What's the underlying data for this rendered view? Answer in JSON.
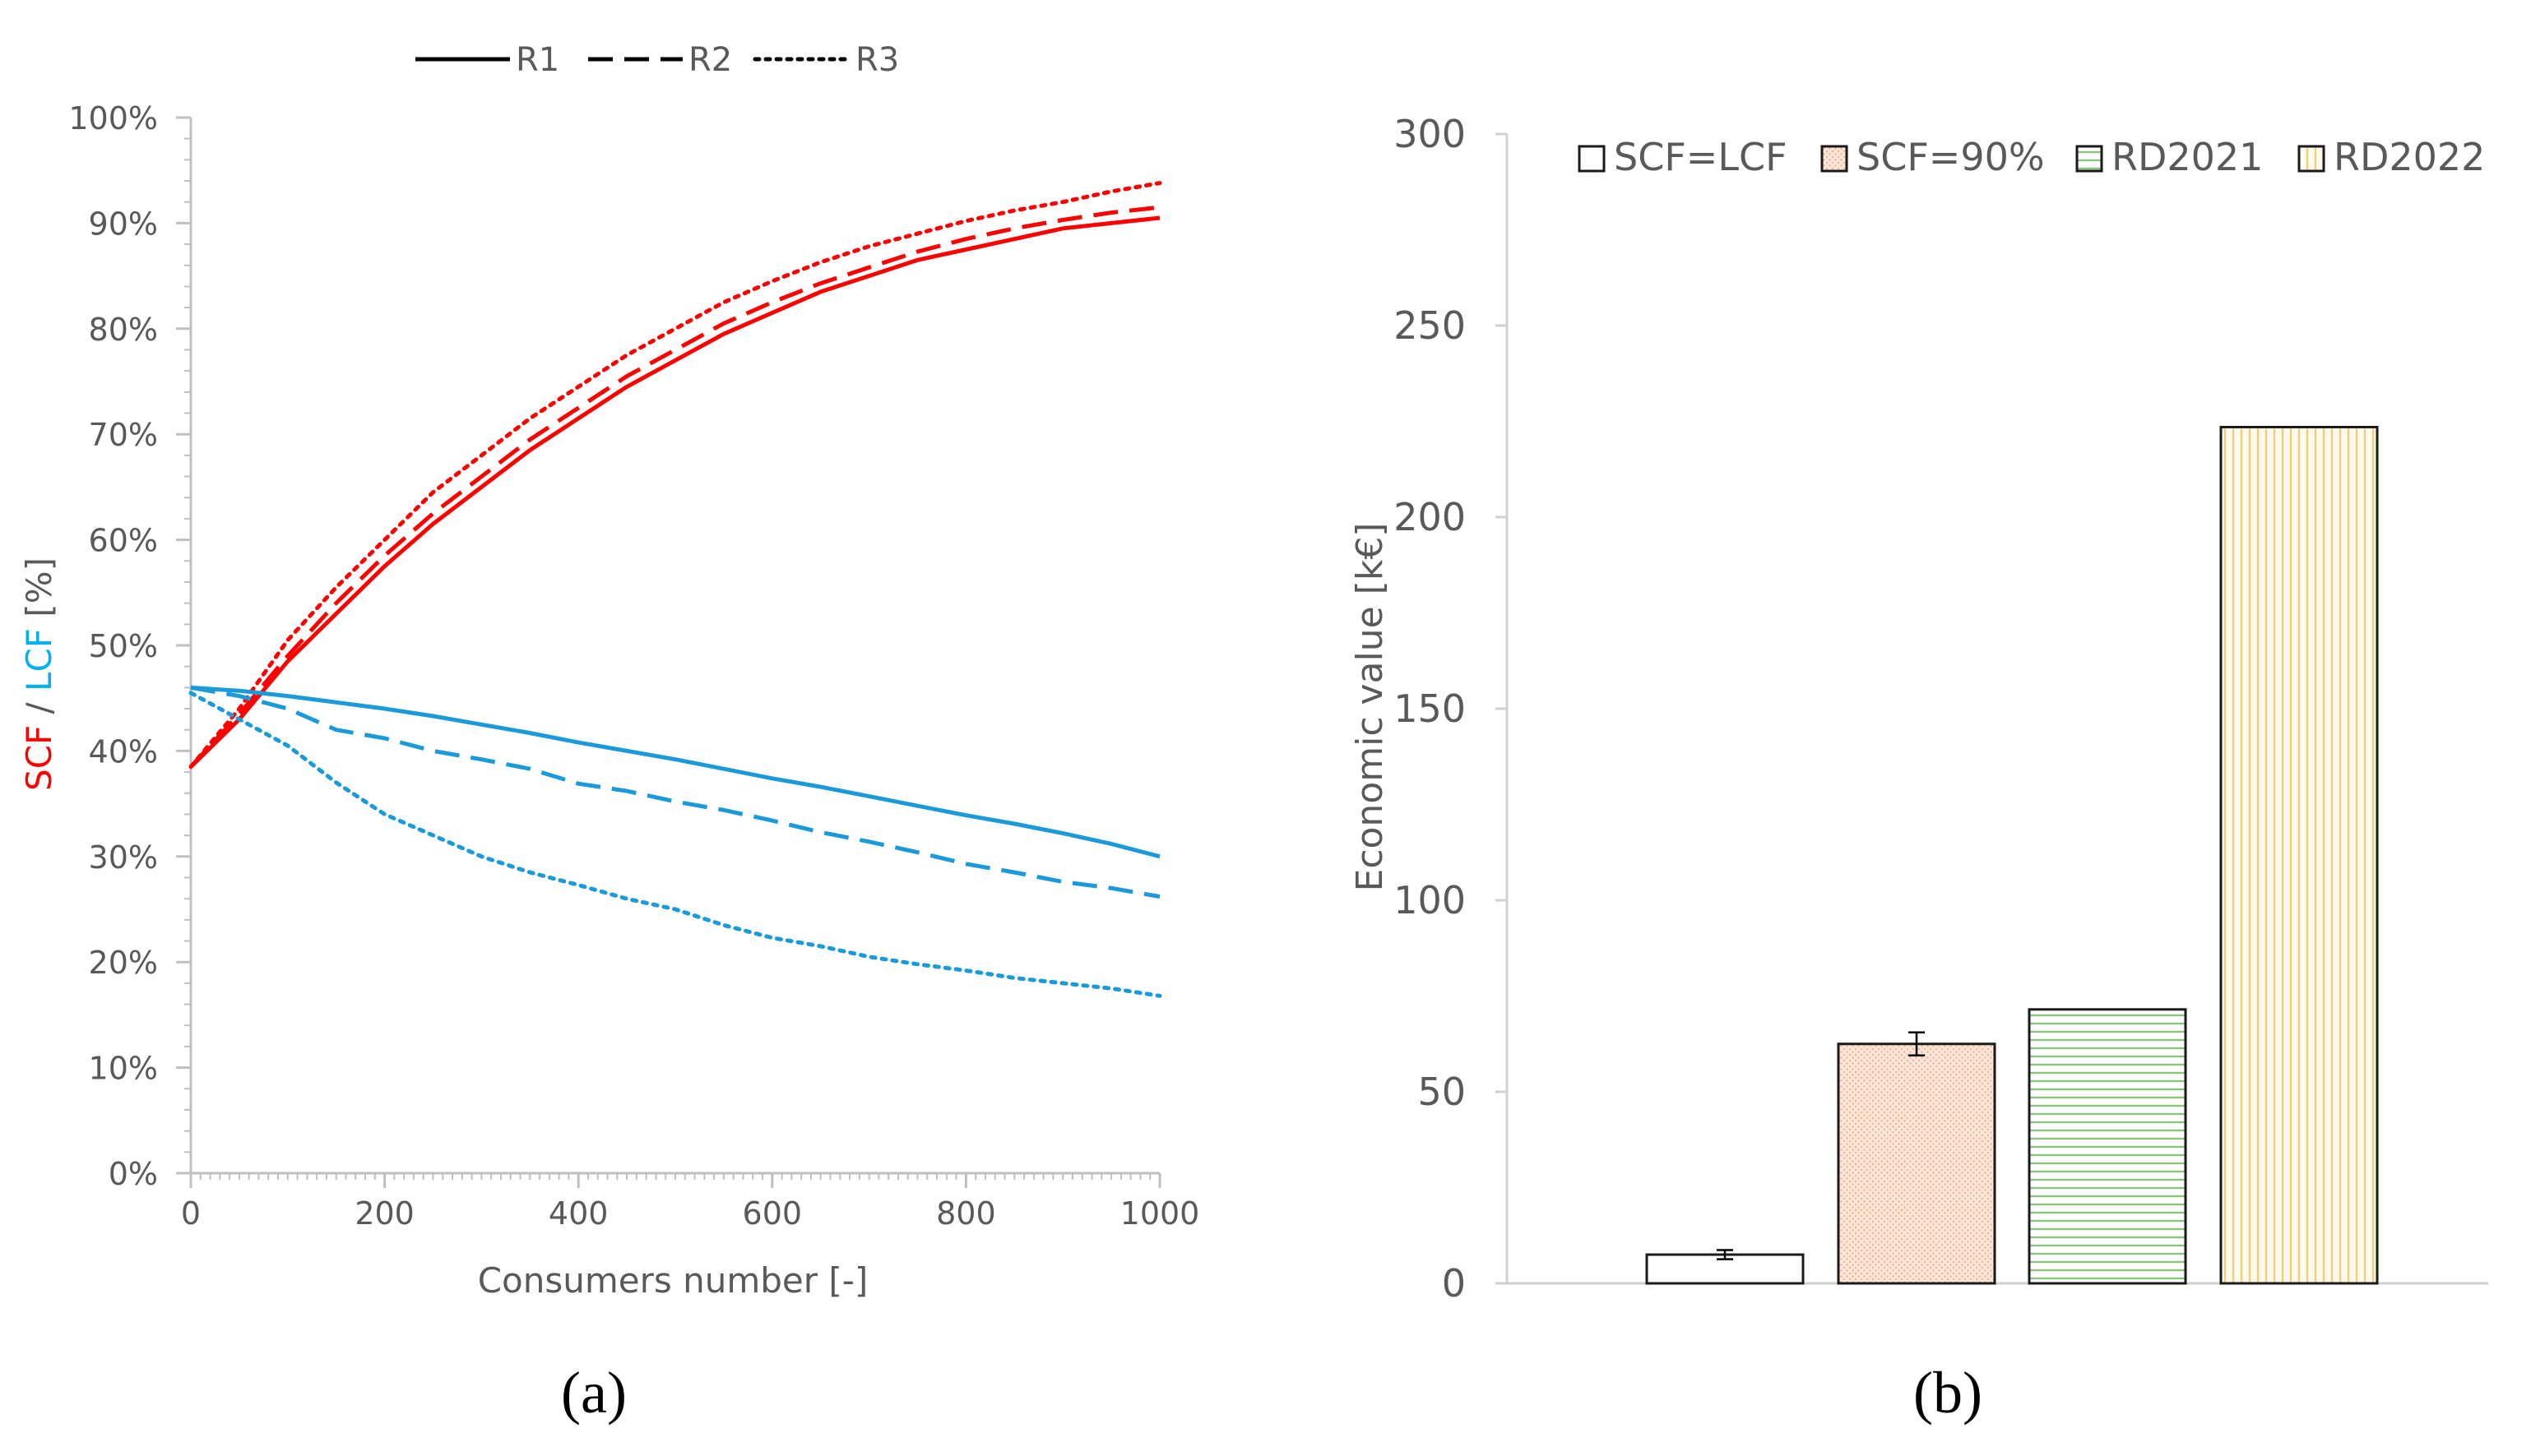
{
  "chart_data": [
    {
      "type": "line",
      "panel_label": "(a)",
      "xlabel": "Consumers number [-]",
      "ylabel_parts": [
        {
          "text": "SCF",
          "color": "#ff0000"
        },
        {
          "text": " / ",
          "color": "#595959"
        },
        {
          "text": "LCF",
          "color": "#00b0f0"
        },
        {
          "text": " [%]",
          "color": "#595959"
        }
      ],
      "xlim": [
        0,
        1000
      ],
      "ylim": [
        0,
        100
      ],
      "x_ticks": [
        "0",
        "200",
        "400",
        "600",
        "800",
        "1000"
      ],
      "x_tick_values": [
        0,
        200,
        400,
        600,
        800,
        1000
      ],
      "y_ticks": [
        "0%",
        "10%",
        "20%",
        "30%",
        "40%",
        "50%",
        "60%",
        "70%",
        "80%",
        "90%",
        "100%"
      ],
      "y_tick_values": [
        0,
        10,
        20,
        30,
        40,
        50,
        60,
        70,
        80,
        90,
        100
      ],
      "legend": [
        {
          "name": "R1",
          "dash": "solid"
        },
        {
          "name": "R2",
          "dash": "dashed"
        },
        {
          "name": "R3",
          "dash": "dotted"
        }
      ],
      "x": [
        0,
        50,
        100,
        150,
        200,
        250,
        300,
        350,
        400,
        450,
        500,
        550,
        600,
        650,
        700,
        750,
        800,
        850,
        900,
        950,
        1000
      ],
      "series": [
        {
          "name": "SCF R1",
          "metric": "SCF",
          "color": "#ff0000",
          "dash": "solid",
          "values": [
            38.5,
            43,
            48.5,
            53,
            57.5,
            61.5,
            65,
            68.5,
            71.5,
            74.5,
            77,
            79.5,
            81.5,
            83.5,
            85,
            86.5,
            87.5,
            88.5,
            89.5,
            90,
            90.5
          ]
        },
        {
          "name": "SCF R2",
          "metric": "SCF",
          "color": "#ff0000",
          "dash": "dashed",
          "values": [
            38.5,
            43.5,
            49,
            54,
            58.5,
            62.5,
            66,
            69.5,
            72.5,
            75.5,
            78,
            80.5,
            82.5,
            84.3,
            85.8,
            87.3,
            88.5,
            89.5,
            90.3,
            91,
            91.5
          ]
        },
        {
          "name": "SCF R3",
          "metric": "SCF",
          "color": "#ff0000",
          "dash": "dotted",
          "values": [
            38.5,
            44,
            50.5,
            55.5,
            60,
            64.5,
            68,
            71.5,
            74.5,
            77.5,
            80,
            82.5,
            84.5,
            86.3,
            87.8,
            89,
            90.2,
            91.2,
            92,
            93,
            93.8
          ]
        },
        {
          "name": "LCF R1",
          "metric": "LCF",
          "color": "#00b0f0",
          "dash": "solid",
          "values": [
            46,
            45.7,
            45.2,
            44.6,
            44,
            43.3,
            42.5,
            41.7,
            40.8,
            40,
            39.2,
            38.3,
            37.4,
            36.6,
            35.7,
            34.8,
            33.9,
            33.1,
            32.2,
            31.2,
            30
          ]
        },
        {
          "name": "LCF R2",
          "metric": "LCF",
          "color": "#00b0f0",
          "dash": "dashed",
          "values": [
            46,
            45.2,
            44,
            42,
            41.2,
            40,
            39.2,
            38.3,
            36.9,
            36.2,
            35.2,
            34.4,
            33.4,
            32.3,
            31.4,
            30.4,
            29.3,
            28.5,
            27.6,
            27,
            26.2
          ]
        },
        {
          "name": "LCF R3",
          "metric": "LCF",
          "color": "#00b0f0",
          "dash": "dotted",
          "values": [
            45.5,
            43,
            40.5,
            37,
            34,
            32,
            30,
            28.5,
            27.3,
            26,
            25,
            23.5,
            22.3,
            21.5,
            20.5,
            19.8,
            19.2,
            18.5,
            18,
            17.5,
            16.8
          ]
        }
      ]
    },
    {
      "type": "bar",
      "panel_label": "(b)",
      "ylabel": "Economic value [k€]",
      "ylim": [
        0,
        300
      ],
      "y_ticks": [
        "0",
        "50",
        "100",
        "150",
        "200",
        "250",
        "300"
      ],
      "y_tick_values": [
        0,
        50,
        100,
        150,
        200,
        250,
        300
      ],
      "categories": [
        "SCF=LCF",
        "SCF=90%",
        "RD2021",
        "RD2022"
      ],
      "values": [
        7.5,
        62.5,
        71.5,
        223.5
      ],
      "error": [
        1.2,
        3,
        null,
        null
      ],
      "fills": [
        {
          "name": "SCF=LCF",
          "base": "#ffffff",
          "pattern": "none"
        },
        {
          "name": "SCF=90%",
          "base": "#fbe6d9",
          "pattern": "dots",
          "line": "#f2b290"
        },
        {
          "name": "RD2021",
          "base": "#ffffff",
          "pattern": "horizontal",
          "line": "#8cc37f"
        },
        {
          "name": "RD2022",
          "base": "#ffffff",
          "pattern": "vertical",
          "line": "#f3cd74"
        }
      ]
    }
  ]
}
